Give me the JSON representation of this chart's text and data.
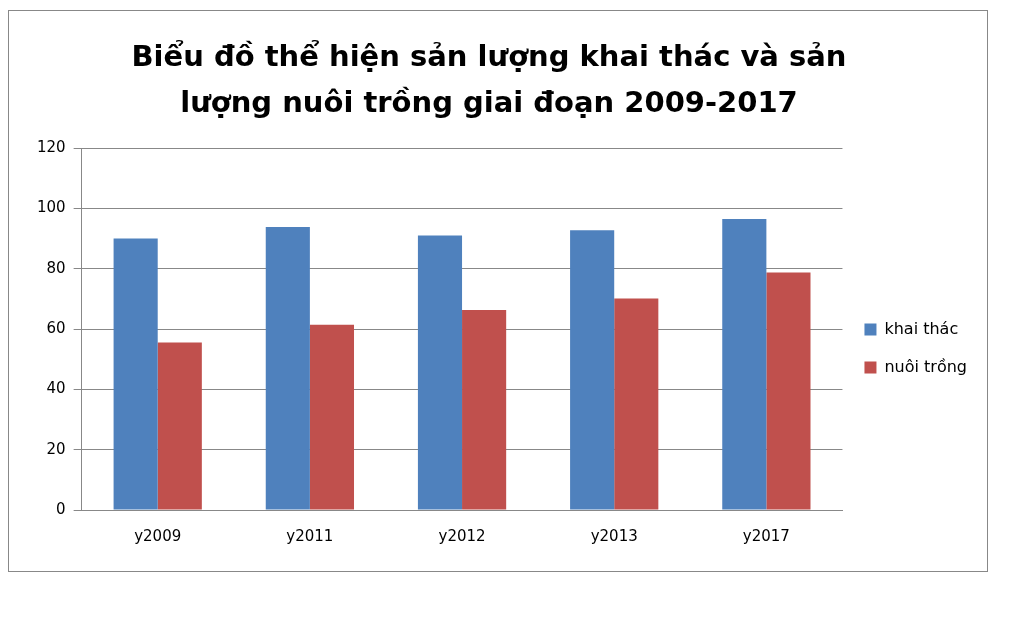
{
  "chart_data": {
    "type": "bar",
    "title": "Biểu đồ thể hiện sản lượng khai thác và sản lượng nuôi trồng giai đoạn 2009-2017",
    "categories": [
      "y2009",
      "y2011",
      "y2012",
      "y2013",
      "y2017"
    ],
    "series": [
      {
        "name": "khai thác",
        "color": "#4f81bd",
        "values": [
          90,
          93.8,
          91,
          92.7,
          96.5
        ]
      },
      {
        "name": "nuôi trồng",
        "color": "#c0504d",
        "values": [
          55.5,
          61.4,
          66.3,
          70.1,
          78.7
        ]
      }
    ],
    "ylim": [
      0,
      120
    ],
    "yticks": [
      0,
      20,
      40,
      60,
      80,
      100,
      120
    ],
    "grid": "y",
    "legend": "right"
  }
}
